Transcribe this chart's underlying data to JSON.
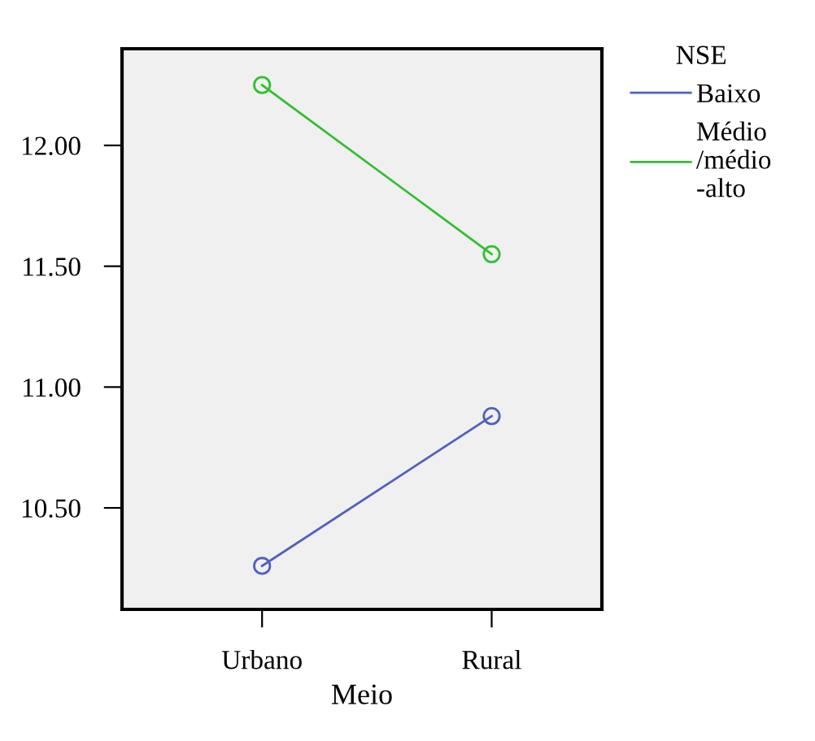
{
  "chart_data": {
    "type": "line",
    "xlabel": "Meio",
    "legend_title": "NSE",
    "categories": [
      "Urbano",
      "Rural"
    ],
    "series": [
      {
        "name": "Baixo",
        "color": "#5060c0",
        "values": [
          10.26,
          10.88
        ]
      },
      {
        "name": "Médio /médio -alto",
        "color": "#30c030",
        "values": [
          12.25,
          11.55
        ]
      }
    ],
    "ylim": [
      10.08,
      12.4
    ],
    "yticks": [
      {
        "value": 10.5,
        "label": "10.50"
      },
      {
        "value": 11.0,
        "label": "11.00"
      },
      {
        "value": 11.5,
        "label": "11.50"
      },
      {
        "value": 12.0,
        "label": "12.00"
      }
    ],
    "grid": false,
    "legend": "right",
    "marker": "circle",
    "line_style": "solid"
  }
}
